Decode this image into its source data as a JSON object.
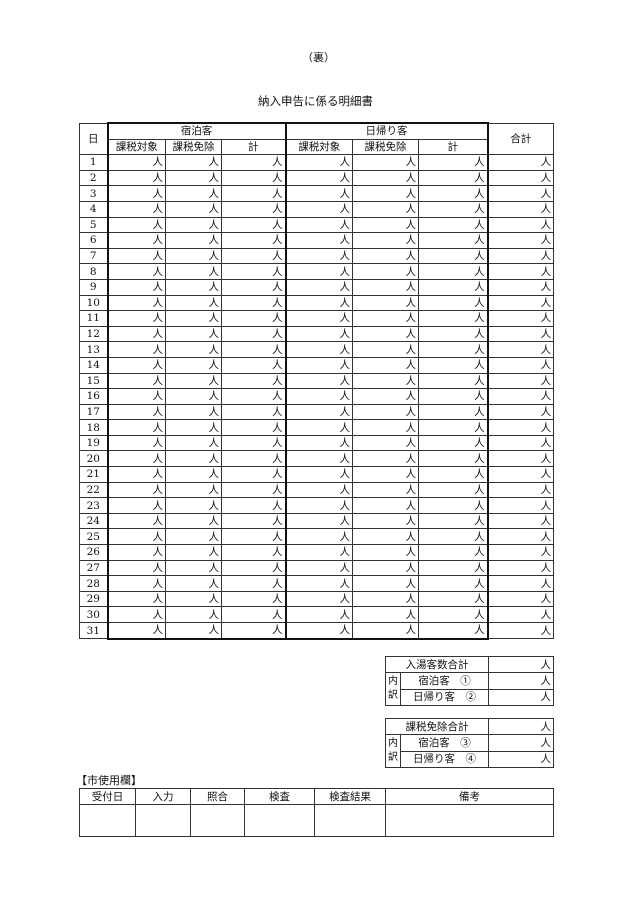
{
  "page_marker": "（裏）",
  "title": "納入申告に係る明細書",
  "main_table": {
    "day_header": "日",
    "group_lodging": "宿泊客",
    "group_daytrip": "日帰り客",
    "total_header": "合計",
    "sub_headers": [
      "課税対象",
      "課税免除",
      "計"
    ],
    "unit": "人",
    "days": [
      "1",
      "2",
      "3",
      "4",
      "5",
      "6",
      "7",
      "8",
      "9",
      "10",
      "11",
      "12",
      "13",
      "14",
      "15",
      "16",
      "17",
      "18",
      "19",
      "20",
      "21",
      "22",
      "23",
      "24",
      "25",
      "26",
      "27",
      "28",
      "29",
      "30",
      "31"
    ]
  },
  "summary1": {
    "title": "入湯客数合計",
    "breakdown": "内訳",
    "rows": [
      "宿泊客　①",
      "日帰り客　②"
    ],
    "unit": "人"
  },
  "summary2": {
    "title": "課税免除合計",
    "breakdown": "内訳",
    "rows": [
      "宿泊客　③",
      "日帰り客　④"
    ],
    "unit": "人"
  },
  "city_use": {
    "label": "【市使用欄】",
    "headers": [
      "受付日",
      "入力",
      "照合",
      "検査",
      "検査結果",
      "備考"
    ]
  }
}
